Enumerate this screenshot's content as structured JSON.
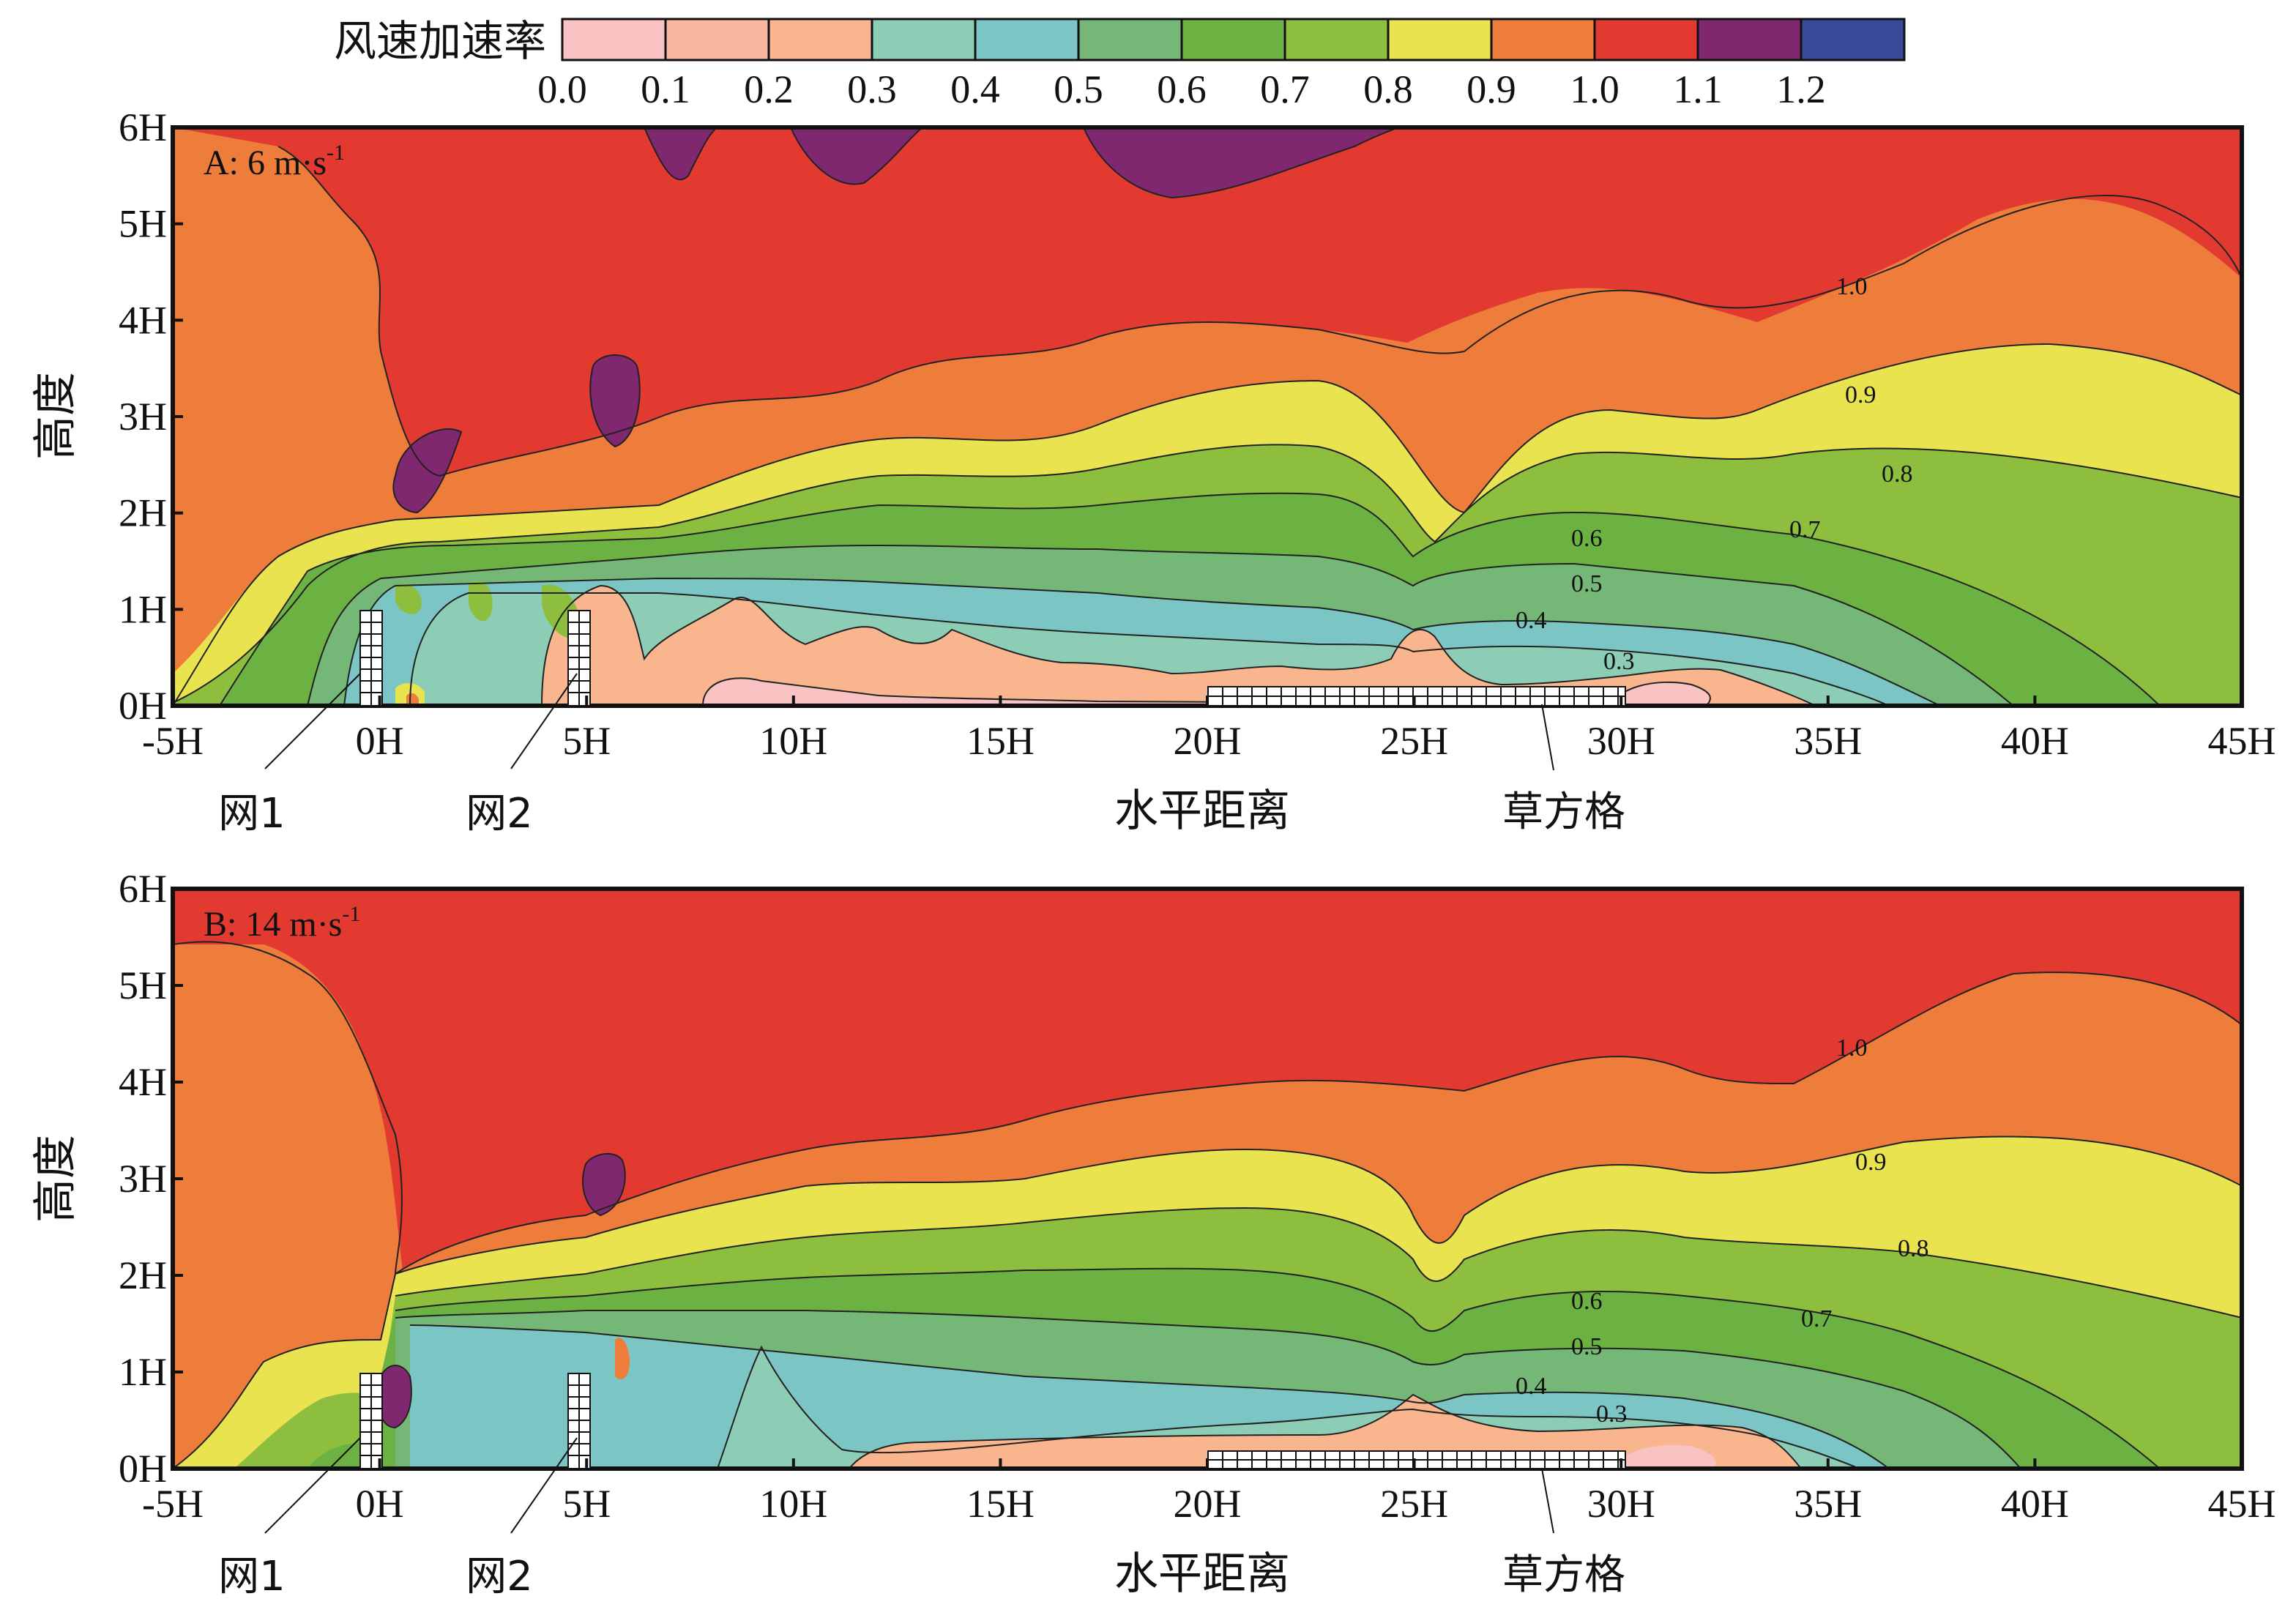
{
  "legend": {
    "title": "风速加速率",
    "ticks": [
      "0.0",
      "0.1",
      "0.2",
      "0.3",
      "0.4",
      "0.5",
      "0.6",
      "0.7",
      "0.8",
      "0.9",
      "1.0",
      "1.1",
      "1.2"
    ],
    "colors": [
      "#F9C3C3",
      "#F9B79F",
      "#F8B58E",
      "#8ECDB5",
      "#7CC5C5",
      "#74B776",
      "#6CB242",
      "#8DBE3E",
      "#E9E34F",
      "#EE7D3B",
      "#E23A30",
      "#7F2870",
      "#3B4A98"
    ]
  },
  "chart_data": [
    {
      "type": "heatmap",
      "panel_label": "A: 6 m·s",
      "panel_label_sup": "-1",
      "xlabel": "水平距离",
      "ylabel": "高度",
      "x_ticks": [
        "-5H",
        "0H",
        "5H",
        "10H",
        "15H",
        "20H",
        "25H",
        "30H",
        "35H",
        "40H",
        "45H"
      ],
      "y_ticks": [
        "0H",
        "1H",
        "2H",
        "3H",
        "4H",
        "5H",
        "6H"
      ],
      "xlim": [
        -5,
        45
      ],
      "ylim": [
        0,
        6
      ],
      "annotations": [
        "网1",
        "网2",
        "草方格"
      ],
      "contour_labels": [
        "1.0",
        "0.9",
        "0.8",
        "0.7",
        "0.6",
        "0.5",
        "0.4",
        "0.3"
      ]
    },
    {
      "type": "heatmap",
      "panel_label": "B: 14 m·s",
      "panel_label_sup": "-1",
      "xlabel": "水平距离",
      "ylabel": "高度",
      "x_ticks": [
        "-5H",
        "0H",
        "5H",
        "10H",
        "15H",
        "20H",
        "25H",
        "30H",
        "35H",
        "40H",
        "45H"
      ],
      "y_ticks": [
        "0H",
        "1H",
        "2H",
        "3H",
        "4H",
        "5H",
        "6H"
      ],
      "xlim": [
        -5,
        45
      ],
      "ylim": [
        0,
        6
      ],
      "annotations": [
        "网1",
        "网2",
        "草方格"
      ],
      "contour_labels": [
        "1.0",
        "0.9",
        "0.8",
        "0.7",
        "0.6",
        "0.5",
        "0.4",
        "0.3"
      ]
    }
  ]
}
